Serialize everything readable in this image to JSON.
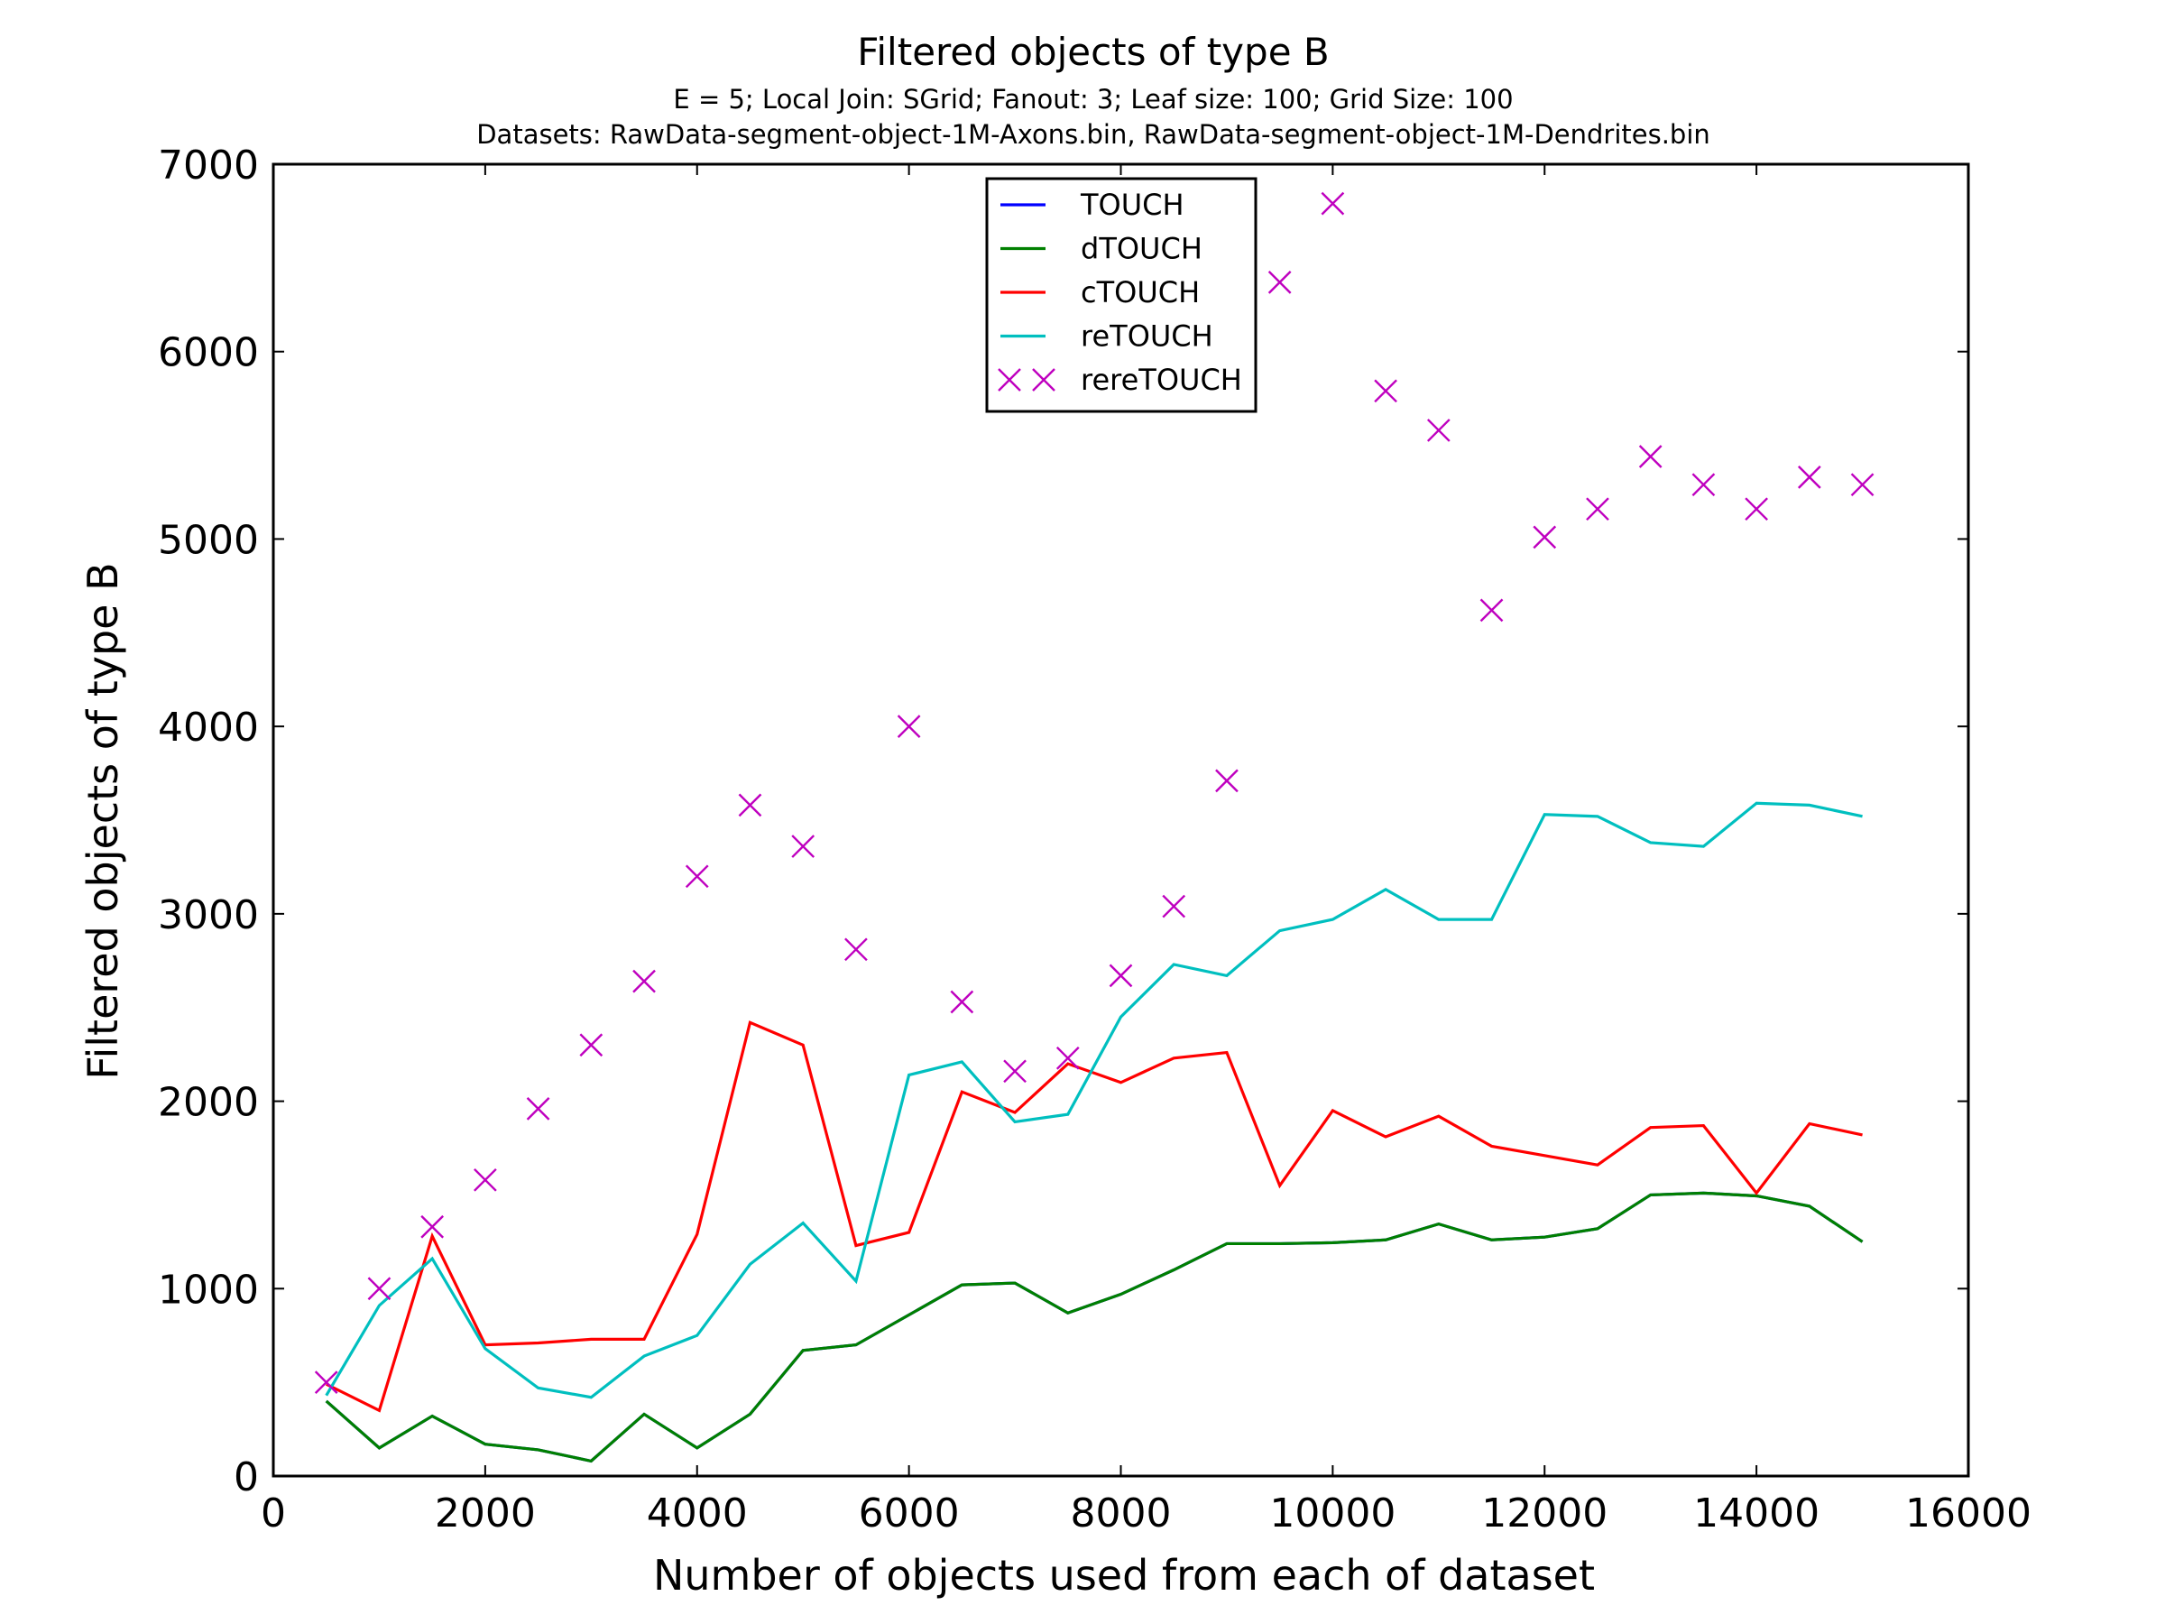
{
  "chart_data": {
    "type": "line",
    "title": "Filtered objects of type B",
    "subtitle_lines": [
      "E = 5; Local Join: SGrid; Fanout: 3; Leaf size: 100; Grid Size: 100",
      "Datasets: RawData-segment-object-1M-Axons.bin, RawData-segment-object-1M-Dendrites.bin"
    ],
    "xlabel": "Number of objects used from each of dataset",
    "ylabel": "Filtered objects of type B",
    "xlim": [
      0,
      16000
    ],
    "ylim": [
      0,
      7000
    ],
    "xticks": [
      0,
      2000,
      4000,
      6000,
      8000,
      10000,
      12000,
      14000,
      16000
    ],
    "yticks": [
      0,
      1000,
      2000,
      3000,
      4000,
      5000,
      6000,
      7000
    ],
    "grid": false,
    "legend_position": "upper center",
    "x": [
      500,
      1000,
      1500,
      2000,
      2500,
      3000,
      3500,
      4000,
      4500,
      5000,
      5500,
      6000,
      6500,
      7000,
      7500,
      8000,
      8500,
      9000,
      9500,
      10000,
      10500,
      11000,
      11500,
      12000,
      12500,
      13000,
      13500,
      14000,
      14500,
      15000
    ],
    "series": [
      {
        "name": "TOUCH",
        "color": "#0000ff",
        "style": "line",
        "values": [
          400,
          150,
          320,
          170,
          140,
          80,
          330,
          150,
          330,
          670,
          700,
          860,
          1020,
          1030,
          870,
          970,
          1100,
          1240,
          1240,
          1245,
          1260,
          1345,
          1260,
          1275,
          1320,
          1500,
          1510,
          1495,
          1440,
          1250
        ]
      },
      {
        "name": "dTOUCH",
        "color": "#008000",
        "style": "line",
        "values": [
          400,
          150,
          320,
          170,
          140,
          80,
          330,
          150,
          330,
          670,
          700,
          860,
          1020,
          1030,
          870,
          970,
          1100,
          1240,
          1240,
          1245,
          1260,
          1345,
          1260,
          1275,
          1320,
          1500,
          1510,
          1495,
          1440,
          1250
        ]
      },
      {
        "name": "cTOUCH",
        "color": "#ff0000",
        "style": "line",
        "values": [
          490,
          350,
          1280,
          700,
          710,
          730,
          730,
          1290,
          2420,
          2300,
          1230,
          1300,
          2050,
          1940,
          2200,
          2100,
          2230,
          2260,
          1550,
          1950,
          1810,
          1920,
          1760,
          1710,
          1660,
          1860,
          1870,
          1510,
          1880,
          1820
        ]
      },
      {
        "name": "reTOUCH",
        "color": "#00bfbf",
        "style": "line",
        "values": [
          430,
          910,
          1160,
          680,
          470,
          420,
          640,
          750,
          1130,
          1350,
          1040,
          2140,
          2210,
          1890,
          1930,
          2450,
          2730,
          2670,
          2910,
          2970,
          3130,
          2970,
          2970,
          3530,
          3520,
          3380,
          3360,
          3590,
          3580,
          3520
        ]
      },
      {
        "name": "rereTOUCH",
        "color": "#bf00bf",
        "style": "marker",
        "values": [
          500,
          1000,
          1330,
          1580,
          1960,
          2300,
          2640,
          3200,
          3580,
          3360,
          2810,
          4000,
          2530,
          2160,
          2230,
          2670,
          3040,
          3710,
          6370,
          6790,
          5790,
          5580,
          4620,
          5010,
          5160,
          5440,
          5290,
          5160,
          5330,
          5290
        ]
      }
    ]
  }
}
